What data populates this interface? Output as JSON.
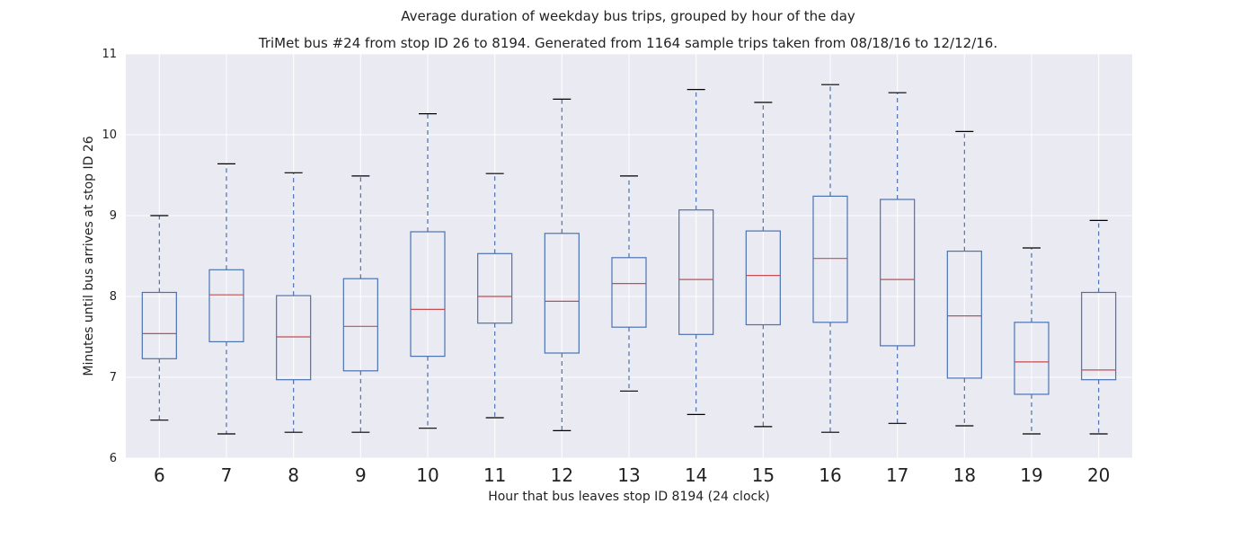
{
  "chart_data": {
    "type": "box",
    "title": "Average duration of weekday bus trips, grouped by hour of the day",
    "subtitle": "TriMet bus #24 from stop ID 26 to 8194. Generated from 1164 sample trips taken from 08/18/16 to 12/12/16.",
    "xlabel": "Hour that bus leaves stop ID 8194 (24 clock)",
    "ylabel": "Minutes until bus arrives at stop ID 26",
    "ylim": [
      6,
      11
    ],
    "yticks": [
      "6",
      "7",
      "8",
      "9",
      "10",
      "11"
    ],
    "grid": true,
    "categories": [
      "6",
      "7",
      "8",
      "9",
      "10",
      "11",
      "12",
      "13",
      "14",
      "15",
      "16",
      "17",
      "18",
      "19",
      "20"
    ],
    "boxes": [
      {
        "whislo": 6.47,
        "q1": 7.23,
        "med": 7.54,
        "q3": 8.05,
        "whishi": 9.0
      },
      {
        "whislo": 6.3,
        "q1": 7.44,
        "med": 8.02,
        "q3": 8.33,
        "whishi": 9.64
      },
      {
        "whislo": 6.32,
        "q1": 6.97,
        "med": 7.5,
        "q3": 8.01,
        "whishi": 9.53
      },
      {
        "whislo": 6.32,
        "q1": 7.08,
        "med": 7.63,
        "q3": 8.22,
        "whishi": 9.49
      },
      {
        "whislo": 6.37,
        "q1": 7.26,
        "med": 7.84,
        "q3": 8.8,
        "whishi": 10.26
      },
      {
        "whislo": 6.5,
        "q1": 7.67,
        "med": 8.0,
        "q3": 8.53,
        "whishi": 9.52
      },
      {
        "whislo": 6.34,
        "q1": 7.3,
        "med": 7.94,
        "q3": 8.78,
        "whishi": 10.44
      },
      {
        "whislo": 6.83,
        "q1": 7.62,
        "med": 8.16,
        "q3": 8.48,
        "whishi": 9.49
      },
      {
        "whislo": 6.54,
        "q1": 7.53,
        "med": 8.21,
        "q3": 9.07,
        "whishi": 10.56
      },
      {
        "whislo": 6.39,
        "q1": 7.65,
        "med": 8.26,
        "q3": 8.81,
        "whishi": 10.4
      },
      {
        "whislo": 6.32,
        "q1": 7.68,
        "med": 8.47,
        "q3": 9.24,
        "whishi": 10.62
      },
      {
        "whislo": 6.43,
        "q1": 7.39,
        "med": 8.21,
        "q3": 9.2,
        "whishi": 10.52
      },
      {
        "whislo": 6.4,
        "q1": 6.99,
        "med": 7.76,
        "q3": 8.56,
        "whishi": 10.04
      },
      {
        "whislo": 6.3,
        "q1": 6.79,
        "med": 7.19,
        "q3": 7.68,
        "whishi": 8.6
      },
      {
        "whislo": 6.3,
        "q1": 6.97,
        "med": 7.09,
        "q3": 8.05,
        "whishi": 8.94
      }
    ],
    "colors": {
      "background": "#eaeaf2",
      "grid": "#ffffff",
      "box": "#4c72b0",
      "median": "#c44e52",
      "cap": "#000000"
    }
  }
}
